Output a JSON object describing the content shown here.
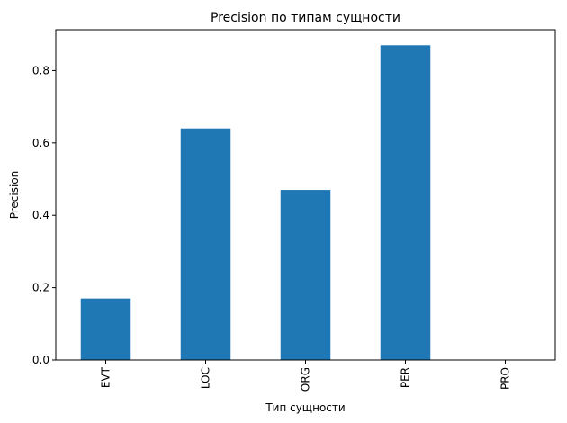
{
  "chart_data": {
    "type": "bar",
    "title": "Precision по типам сущности",
    "xlabel": "Тип сущности",
    "ylabel": "Precision",
    "categories": [
      "EVT",
      "LOC",
      "ORG",
      "PER",
      "PRO"
    ],
    "values": [
      0.17,
      0.64,
      0.47,
      0.87,
      0.0
    ],
    "ylim": [
      0,
      0.913
    ],
    "yticks": [
      0.0,
      0.2,
      0.4,
      0.6,
      0.8
    ],
    "ytick_labels": [
      "0.0",
      "0.2",
      "0.4",
      "0.6",
      "0.8"
    ],
    "grid": false,
    "legend": "none",
    "bar_color": "#1f77b4"
  }
}
